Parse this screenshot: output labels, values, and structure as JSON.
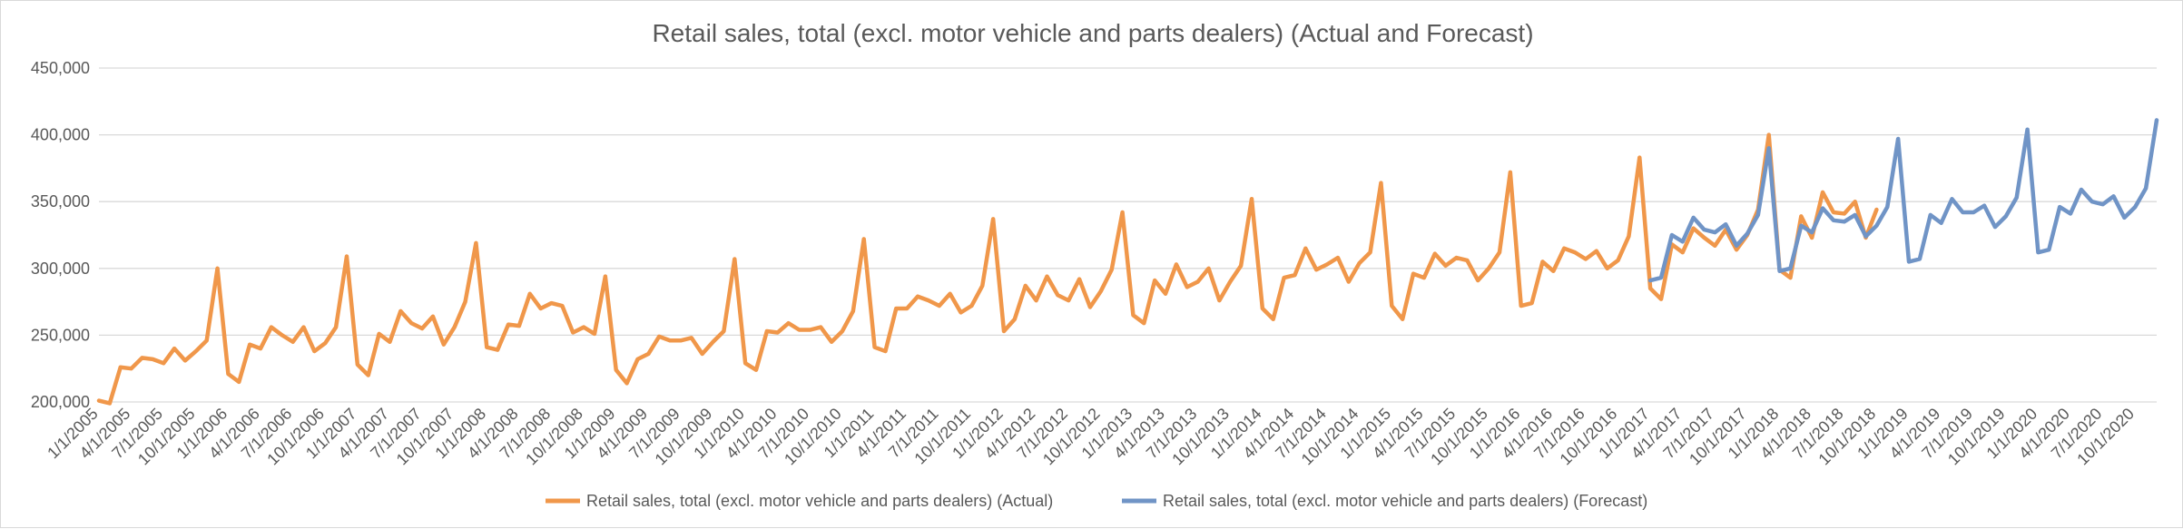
{
  "chart_data": {
    "type": "line",
    "title": "Retail sales, total (excl. motor vehicle and parts dealers) (Actual and Forecast)",
    "xlabel": "",
    "ylabel": "",
    "ylim": [
      200000,
      450000
    ],
    "yticks": [
      200000,
      250000,
      300000,
      350000,
      400000,
      450000
    ],
    "ytick_labels": [
      "200,000",
      "250,000",
      "300,000",
      "350,000",
      "400,000",
      "450,000"
    ],
    "x_start": "2005-01",
    "x_count": 192,
    "xtick_labels": [
      "1/1/2005",
      "4/1/2005",
      "7/1/2005",
      "10/1/2005",
      "1/1/2006",
      "4/1/2006",
      "7/1/2006",
      "10/1/2006",
      "1/1/2007",
      "4/1/2007",
      "7/1/2007",
      "10/1/2007",
      "1/1/2008",
      "4/1/2008",
      "7/1/2008",
      "10/1/2008",
      "1/1/2009",
      "4/1/2009",
      "7/1/2009",
      "10/1/2009",
      "1/1/2010",
      "4/1/2010",
      "7/1/2010",
      "10/1/2010",
      "1/1/2011",
      "4/1/2011",
      "7/1/2011",
      "10/1/2011",
      "1/1/2012",
      "4/1/2012",
      "7/1/2012",
      "10/1/2012",
      "1/1/2013",
      "4/1/2013",
      "7/1/2013",
      "10/1/2013",
      "1/1/2014",
      "4/1/2014",
      "7/1/2014",
      "10/1/2014",
      "1/1/2015",
      "4/1/2015",
      "7/1/2015",
      "10/1/2015",
      "1/1/2016",
      "4/1/2016",
      "7/1/2016",
      "10/1/2016",
      "1/1/2017",
      "4/1/2017",
      "7/1/2017",
      "10/1/2017",
      "1/1/2018",
      "4/1/2018",
      "7/1/2018",
      "10/1/2018",
      "1/1/2019",
      "4/1/2019",
      "7/1/2019",
      "10/1/2019",
      "1/1/2020",
      "4/1/2020",
      "7/1/2020",
      "10/1/2020"
    ],
    "grid": true,
    "legend_position": "bottom",
    "series": [
      {
        "name": "Retail sales, total (excl. motor vehicle and parts dealers) (Actual)",
        "color": "#f0974a",
        "start": "2005-01",
        "values": [
          201000,
          199000,
          226000,
          225000,
          233000,
          232000,
          229000,
          240000,
          231000,
          238000,
          246000,
          300000,
          221000,
          215000,
          243000,
          240000,
          256000,
          250000,
          245000,
          256000,
          238000,
          244000,
          256000,
          309000,
          228000,
          220000,
          251000,
          245000,
          268000,
          259000,
          255000,
          264000,
          243000,
          256000,
          275000,
          319000,
          241000,
          239000,
          258000,
          257000,
          281000,
          270000,
          274000,
          272000,
          252000,
          256000,
          251000,
          294000,
          224000,
          214000,
          232000,
          236000,
          249000,
          246000,
          246000,
          248000,
          236000,
          245000,
          253000,
          307000,
          229000,
          224000,
          253000,
          252000,
          259000,
          254000,
          254000,
          256000,
          245000,
          253000,
          268000,
          322000,
          241000,
          238000,
          270000,
          270000,
          279000,
          276000,
          272000,
          281000,
          267000,
          272000,
          287000,
          337000,
          253000,
          262000,
          287000,
          276000,
          294000,
          280000,
          276000,
          292000,
          271000,
          283000,
          299000,
          342000,
          265000,
          259000,
          291000,
          281000,
          303000,
          286000,
          290000,
          300000,
          276000,
          290000,
          302000,
          352000,
          270000,
          262000,
          293000,
          295000,
          315000,
          299000,
          303000,
          308000,
          290000,
          304000,
          312000,
          364000,
          272000,
          262000,
          296000,
          293000,
          311000,
          302000,
          308000,
          306000,
          291000,
          300000,
          312000,
          372000,
          272000,
          274000,
          305000,
          298000,
          315000,
          312000,
          307000,
          313000,
          300000,
          306000,
          324000,
          383000,
          285000,
          277000,
          318000,
          312000,
          330000,
          323000,
          317000,
          329000,
          314000,
          325000,
          344000,
          400000,
          299000,
          293000,
          339000,
          323000,
          357000,
          342000,
          341000,
          350000,
          323000,
          344000
        ]
      },
      {
        "name": "Retail sales, total (excl. motor vehicle and parts dealers) (Forecast)",
        "color": "#7094c6",
        "start": "2017-01",
        "values": [
          291000,
          293000,
          325000,
          320000,
          338000,
          329000,
          327000,
          333000,
          317000,
          326000,
          340000,
          390000,
          298000,
          300000,
          332000,
          327000,
          345000,
          336000,
          335000,
          340000,
          324000,
          332000,
          346000,
          397000,
          305000,
          307000,
          340000,
          334000,
          352000,
          342000,
          342000,
          347000,
          331000,
          339000,
          353000,
          404000,
          312000,
          314000,
          346000,
          341000,
          359000,
          350000,
          348000,
          354000,
          338000,
          346000,
          360000,
          411000
        ]
      }
    ]
  }
}
